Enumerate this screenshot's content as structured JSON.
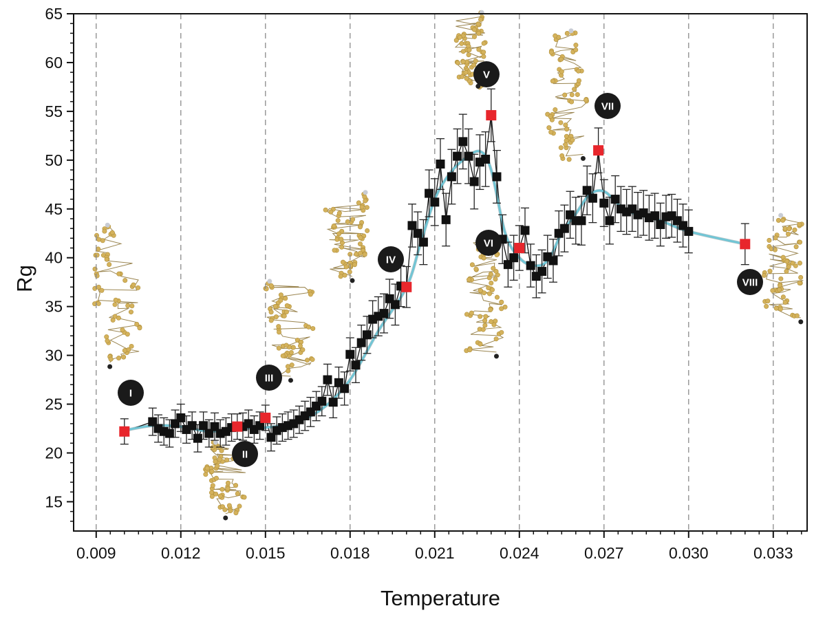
{
  "chart_data": {
    "type": "scatter",
    "xlabel": "Temperature",
    "ylabel": "Rg",
    "xlim": [
      0.0082,
      0.0342
    ],
    "ylim": [
      12,
      65
    ],
    "xticks": [
      "0.009",
      "0.012",
      "0.015",
      "0.018",
      "0.021",
      "0.024",
      "0.027",
      "0.030",
      "0.033"
    ],
    "yticks": [
      "15",
      "20",
      "25",
      "30",
      "35",
      "40",
      "45",
      "50",
      "55",
      "60",
      "65"
    ],
    "grid": "vertical dashed at major x ticks",
    "colors": {
      "points": "#111111",
      "highlighted": "#e8262c",
      "smooth_line": "#6fc6d6",
      "axis": "#111111",
      "grid": "#8a8a8a",
      "chain": "#d4b25c"
    },
    "series": [
      {
        "x": [
          0.011,
          0.0112,
          0.0114,
          0.0116,
          0.0118,
          0.012,
          0.0122,
          0.0124,
          0.0126,
          0.0128,
          0.013,
          0.0132,
          0.0134,
          0.0136,
          0.0138,
          0.0142,
          0.0144,
          0.0146,
          0.0148,
          0.0152,
          0.0154,
          0.0156,
          0.0158,
          0.016,
          0.0162,
          0.0164,
          0.0166,
          0.0168,
          0.017,
          0.0172,
          0.0174,
          0.0176,
          0.0178,
          0.018,
          0.0182,
          0.0184,
          0.0186,
          0.0188,
          0.019,
          0.0192,
          0.0194,
          0.0196,
          0.0198,
          0.0202,
          0.0204,
          0.0206,
          0.0208,
          0.021,
          0.0212,
          0.0214,
          0.0216,
          0.0218,
          0.022,
          0.0222,
          0.0224,
          0.0226,
          0.0228,
          0.0232,
          0.0234,
          0.0236,
          0.0238,
          0.0242,
          0.0244,
          0.0246,
          0.0248,
          0.025,
          0.0252,
          0.0254,
          0.0256,
          0.0258,
          0.026,
          0.0262,
          0.0264,
          0.0266,
          0.027,
          0.0272,
          0.0274,
          0.0276,
          0.0278,
          0.028,
          0.0282,
          0.0284,
          0.0286,
          0.0288,
          0.029,
          0.0292,
          0.0294,
          0.0296,
          0.0298,
          0.03
        ],
        "y": [
          23.2,
          22.5,
          22.2,
          22.0,
          23.0,
          23.6,
          22.4,
          22.8,
          21.5,
          22.8,
          22.0,
          22.7,
          22.0,
          22.2,
          22.6,
          22.7,
          23.0,
          22.4,
          22.8,
          21.6,
          22.3,
          22.6,
          22.8,
          23.0,
          23.4,
          23.8,
          24.2,
          24.8,
          25.3,
          27.5,
          25.2,
          27.2,
          26.6,
          30.1,
          29.0,
          31.3,
          32.1,
          33.7,
          34.0,
          34.3,
          35.8,
          35.2,
          37.1,
          43.3,
          42.5,
          41.6,
          46.6,
          45.7,
          49.6,
          43.9,
          48.3,
          50.4,
          51.9,
          50.4,
          47.8,
          49.8,
          50.1,
          48.3,
          41.9,
          39.3,
          40.0,
          42.8,
          39.2,
          38.1,
          38.6,
          40.1,
          39.7,
          42.5,
          43.0,
          44.4,
          43.8,
          43.8,
          46.9,
          46.1,
          45.6,
          43.8,
          46.0,
          45.0,
          44.7,
          45.0,
          44.4,
          44.6,
          44.1,
          44.3,
          43.4,
          44.2,
          44.3,
          43.8,
          43.3,
          42.7
        ],
        "err": [
          1.4,
          1.4,
          1.4,
          1.4,
          1.4,
          1.4,
          1.4,
          1.4,
          1.4,
          1.4,
          1.4,
          1.4,
          1.4,
          1.4,
          1.4,
          1.4,
          1.4,
          1.4,
          1.4,
          1.4,
          1.4,
          1.4,
          1.4,
          1.4,
          1.4,
          1.5,
          1.5,
          1.5,
          1.5,
          1.6,
          1.6,
          1.6,
          1.7,
          1.7,
          1.8,
          1.8,
          1.9,
          1.9,
          2.0,
          2.0,
          2.0,
          2.1,
          2.1,
          2.2,
          2.2,
          2.3,
          2.4,
          2.4,
          2.6,
          2.7,
          2.8,
          2.8,
          2.8,
          2.8,
          2.8,
          2.8,
          2.8,
          2.7,
          2.5,
          2.3,
          2.3,
          2.3,
          2.2,
          2.2,
          2.2,
          2.2,
          2.2,
          2.3,
          2.4,
          2.4,
          2.4,
          2.5,
          2.5,
          2.5,
          2.4,
          2.4,
          2.4,
          2.3,
          2.3,
          2.3,
          2.3,
          2.3,
          2.3,
          2.3,
          2.2,
          2.2,
          2.2,
          2.2,
          2.2,
          2.2
        ]
      }
    ],
    "highlighted_points": [
      {
        "label": "I",
        "x": 0.01,
        "y": 22.2,
        "err": 1.3
      },
      {
        "label": "II",
        "x": 0.014,
        "y": 22.7,
        "err": 1.3
      },
      {
        "label": "III",
        "x": 0.015,
        "y": 23.6,
        "err": 1.3
      },
      {
        "label": "IV",
        "x": 0.02,
        "y": 37.0,
        "err": 2.1
      },
      {
        "label": "V",
        "x": 0.023,
        "y": 54.6,
        "err": 2.7
      },
      {
        "label": "VI",
        "x": 0.024,
        "y": 41.0,
        "err": 2.3
      },
      {
        "label": "VII",
        "x": 0.0268,
        "y": 51.0,
        "err": 2.3
      },
      {
        "label": "VIII",
        "x": 0.032,
        "y": 41.4,
        "err": 2.1
      }
    ],
    "smooth_curve": {
      "x": [
        0.01,
        0.011,
        0.012,
        0.013,
        0.014,
        0.015,
        0.016,
        0.017,
        0.018,
        0.019,
        0.02,
        0.0205,
        0.021,
        0.0215,
        0.022,
        0.0226,
        0.023,
        0.0235,
        0.024,
        0.0245,
        0.025,
        0.0255,
        0.026,
        0.0265,
        0.027,
        0.0275,
        0.028,
        0.029,
        0.03,
        0.032
      ],
      "y": [
        22.3,
        22.8,
        22.7,
        22.2,
        22.5,
        22.6,
        23.1,
        24.5,
        27.5,
        32.5,
        37.0,
        41.5,
        46.0,
        48.5,
        50.0,
        50.9,
        49.0,
        42.5,
        40.0,
        39.2,
        39.7,
        42.5,
        44.5,
        46.5,
        46.8,
        45.5,
        44.6,
        43.8,
        42.7,
        41.4
      ]
    },
    "annotations": [
      "I",
      "II",
      "III",
      "IV",
      "V",
      "VI",
      "VII",
      "VIII"
    ]
  }
}
